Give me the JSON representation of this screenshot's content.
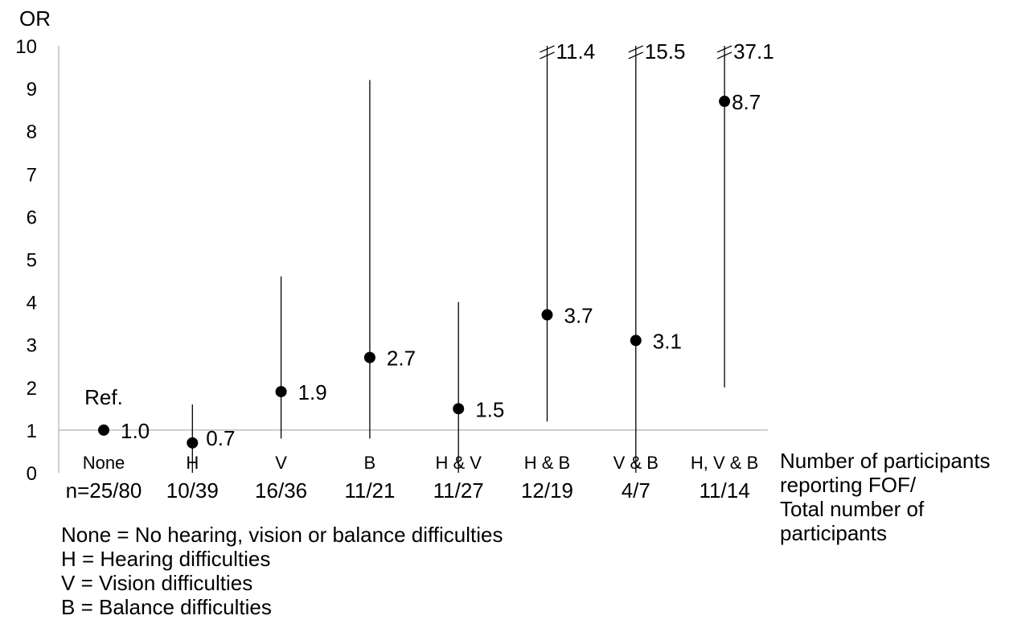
{
  "chart_data": {
    "type": "scatter",
    "ylabel": "OR",
    "ylim": [
      0,
      10
    ],
    "yticks": [
      0,
      1,
      2,
      3,
      4,
      5,
      6,
      7,
      8,
      9,
      10
    ],
    "reference_line": 1,
    "categories": [
      "None",
      "H",
      "V",
      "B",
      "H & V",
      "H & B",
      "V & B",
      "H, V & B"
    ],
    "counts": [
      "n=25/80",
      "10/39",
      "16/36",
      "11/21",
      "11/27",
      "12/19",
      "4/7",
      "11/14"
    ],
    "values": [
      1.0,
      0.7,
      1.9,
      2.7,
      1.5,
      3.7,
      3.1,
      8.7
    ],
    "value_labels": [
      "1.0",
      "0.7",
      "1.9",
      "2.7",
      "1.5",
      "3.7",
      "3.1",
      "8.7"
    ],
    "ci_low": [
      null,
      0,
      0.8,
      0.8,
      0,
      1.2,
      0,
      2.0
    ],
    "ci_high": [
      null,
      1.6,
      4.6,
      9.2,
      4.0,
      11.4,
      15.5,
      37.1
    ],
    "truncated_upper_labels": [
      null,
      null,
      null,
      null,
      null,
      "11.4",
      "15.5",
      "37.1"
    ],
    "annotations": [
      {
        "category": "None",
        "text": "Ref."
      }
    ],
    "grid": false
  },
  "legend": {
    "lines": [
      "None = No hearing, vision or balance difficulties",
      "H = Hearing difficulties",
      "V = Vision difficulties",
      "B = Balance difficulties"
    ]
  },
  "side_note": {
    "lines": [
      "Number of participants",
      "reporting FOF/",
      "Total number of",
      "participants"
    ]
  }
}
